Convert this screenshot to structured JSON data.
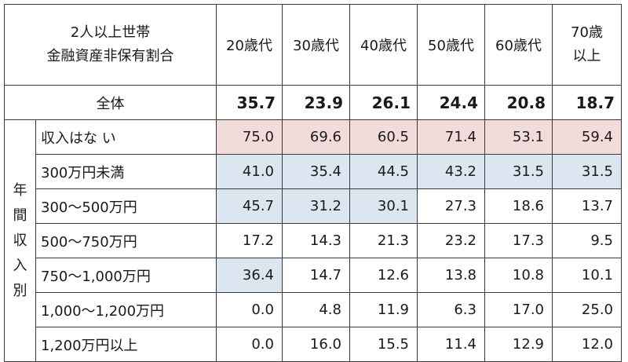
{
  "header": {
    "title_line1": "2人以上世帯",
    "title_line2": "金融資産非保有割合",
    "ages": [
      "20歳代",
      "30歳代",
      "40歳代",
      "50歳代",
      "60歳代"
    ],
    "age70_line1": "70歳",
    "age70_line2": "以上"
  },
  "total": {
    "label": "全体",
    "values": [
      "35.7",
      "23.9",
      "26.1",
      "24.4",
      "20.8",
      "18.7"
    ]
  },
  "group_label_chars": [
    "年",
    "間",
    "収",
    "入",
    "別"
  ],
  "rows": [
    {
      "label": "収入はな い",
      "values": [
        "75.0",
        "69.6",
        "60.5",
        "71.4",
        "53.1",
        "59.4"
      ]
    },
    {
      "label": "300万円未満",
      "values": [
        "41.0",
        "35.4",
        "44.5",
        "43.2",
        "31.5",
        "31.5"
      ]
    },
    {
      "label": "300～500万円",
      "values": [
        "45.7",
        "31.2",
        "30.1",
        "27.3",
        "18.6",
        "13.7"
      ]
    },
    {
      "label": "500～750万円",
      "values": [
        "17.2",
        "14.3",
        "21.3",
        "23.2",
        "17.3",
        "9.5"
      ]
    },
    {
      "label": "750～1,000万円",
      "values": [
        "36.4",
        "14.7",
        "12.6",
        "13.8",
        "10.8",
        "10.1"
      ]
    },
    {
      "label": "1,000～1,200万円",
      "values": [
        "0.0",
        "4.8",
        "11.9",
        "6.3",
        "17.0",
        "25.0"
      ]
    },
    {
      "label": "1,200万円以上",
      "values": [
        "0.0",
        "16.0",
        "15.5",
        "11.4",
        "12.9",
        "12.0"
      ]
    }
  ],
  "highlight_colors": {
    "red": "#f2dcdb",
    "blue": "#dce6f1"
  }
}
